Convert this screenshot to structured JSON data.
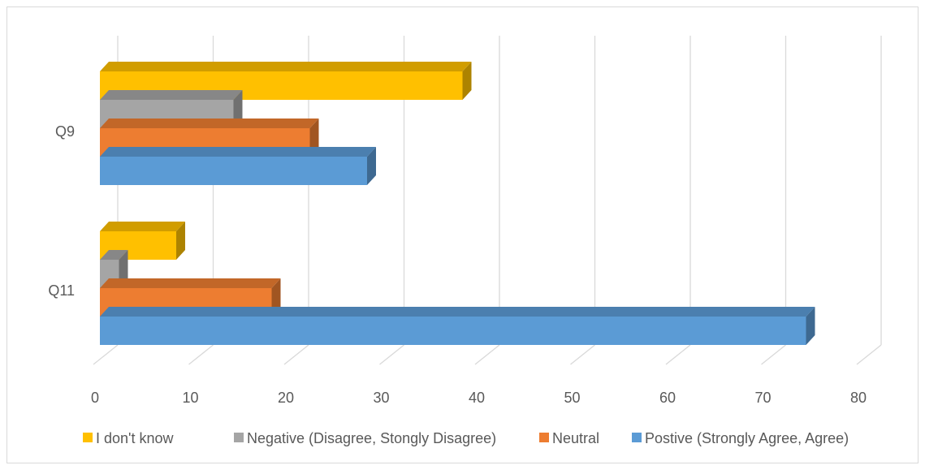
{
  "chart_data": {
    "type": "bar",
    "orientation": "horizontal",
    "style": "3d-clustered",
    "title": "",
    "xlabel": "",
    "ylabel": "",
    "categories": [
      "Q9",
      "Q11"
    ],
    "x_ticks": [
      "0",
      "10",
      "20",
      "30",
      "40",
      "50",
      "60",
      "70",
      "80"
    ],
    "xlim": [
      0,
      80
    ],
    "grid": true,
    "legend_position": "bottom",
    "series": [
      {
        "name": "I don't know",
        "color": "#FFC000",
        "values": [
          38,
          8
        ]
      },
      {
        "name": "Negative (Disagree, Stongly Disagree)",
        "color": "#A5A5A5",
        "values": [
          14,
          2
        ]
      },
      {
        "name": "Neutral",
        "color": "#ED7D31",
        "values": [
          22,
          18
        ]
      },
      {
        "name": "Postive (Strongly Agree, Agree)",
        "color": "#5B9BD5",
        "values": [
          28,
          74
        ]
      }
    ]
  }
}
